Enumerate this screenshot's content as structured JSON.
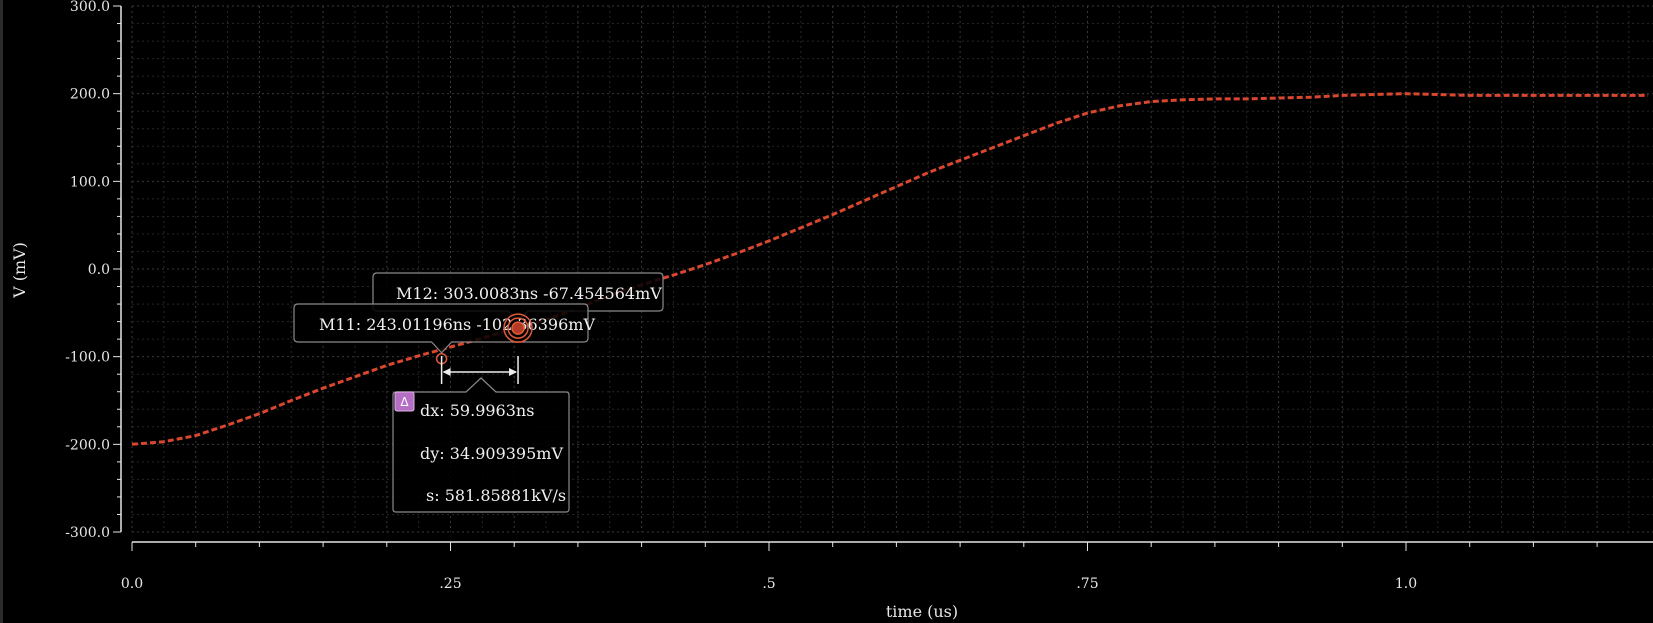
{
  "chart_data": {
    "type": "line",
    "xlabel": "time (us)",
    "ylabel": "V (mV)",
    "xlim": [
      0.0,
      1.19
    ],
    "ylim": [
      -300.0,
      300.0
    ],
    "x_ticks": [
      0.0,
      0.25,
      0.5,
      0.75,
      1.0
    ],
    "x_tick_labels": [
      "0.0",
      ".25",
      ".5",
      ".75",
      "1.0"
    ],
    "y_ticks": [
      -300,
      -200,
      -100,
      0,
      100,
      200,
      300
    ],
    "y_tick_labels": [
      "-300.0",
      "-200.0",
      "-100.0",
      "0.0",
      "100.0",
      "200.0",
      "300.0"
    ],
    "grid": true,
    "series": [
      {
        "color": "#d8472e",
        "line_style": "dashed",
        "x": [
          0.0,
          0.025,
          0.05,
          0.075,
          0.1,
          0.125,
          0.15,
          0.175,
          0.2,
          0.225,
          0.25,
          0.275,
          0.3,
          0.325,
          0.35,
          0.375,
          0.4,
          0.425,
          0.45,
          0.475,
          0.5,
          0.525,
          0.55,
          0.575,
          0.6,
          0.625,
          0.65,
          0.675,
          0.7,
          0.725,
          0.75,
          0.775,
          0.8,
          0.825,
          0.85,
          0.875,
          0.9,
          0.925,
          0.95,
          0.975,
          1.0,
          1.025,
          1.05,
          1.1,
          1.15,
          1.19
        ],
        "y": [
          -200,
          -197,
          -190,
          -178,
          -165,
          -150,
          -136,
          -123,
          -110,
          -99,
          -89,
          -79,
          -68,
          -58,
          -45,
          -30,
          -18,
          -7,
          5,
          18,
          32,
          47,
          62,
          78,
          94,
          110,
          124,
          138,
          152,
          166,
          178,
          186,
          191,
          193,
          194,
          194,
          195,
          196,
          198,
          199,
          200,
          199,
          198,
          198,
          198,
          198
        ]
      }
    ],
    "markers": [
      {
        "label": "M11: 243.01196ns -102.36396mV",
        "x": 0.24301196,
        "y": -102.36396
      },
      {
        "label": "M12: 303.0083ns -67.454564mV",
        "x": 0.3030083,
        "y": -67.454564
      }
    ],
    "delta": {
      "icon_label": "Δ",
      "dx": "dx: 59.9963ns",
      "dy": "dy: 34.909395mV",
      "s": "s: 581.85881kV/s"
    }
  }
}
